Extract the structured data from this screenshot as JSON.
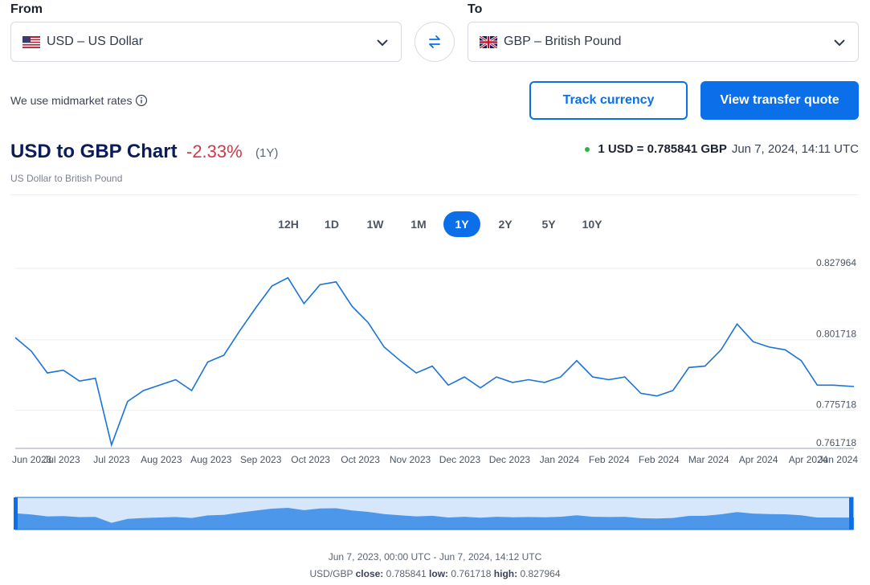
{
  "converter": {
    "from_label": "From",
    "to_label": "To",
    "from_value": "USD – US Dollar",
    "to_value": "GBP – British Pound",
    "from_flag": "us-flag",
    "to_flag": "uk-flag"
  },
  "midmarket_text": "We use midmarket rates",
  "buttons": {
    "track": "Track currency",
    "quote": "View transfer quote"
  },
  "chart_header": {
    "title": "USD to GBP Chart",
    "change": "-2.33%",
    "period": "(1Y)",
    "subtitle": "US Dollar to British Pound",
    "rate": "1 USD = 0.785841 GBP",
    "timestamp": "Jun 7, 2024, 14:11 UTC"
  },
  "ranges": [
    "12H",
    "1D",
    "1W",
    "1M",
    "1Y",
    "2Y",
    "5Y",
    "10Y"
  ],
  "active_range": "1Y",
  "footer": {
    "range_text": "Jun 7, 2023, 00:00 UTC - Jun 7, 2024, 14:12 UTC",
    "pair": "USD/GBP",
    "close_label": "close:",
    "close": "0.785841",
    "low_label": "low:",
    "low": "0.761718",
    "high_label": "high:",
    "high": "0.827964"
  },
  "colors": {
    "accent": "#0a6fe8",
    "negative": "#d0384b",
    "line": "#1a73d9",
    "navigator_fill": "#4c97ea",
    "navigator_bg": "#d6e7fb"
  },
  "chart_data": {
    "type": "line",
    "title": "USD to GBP Chart",
    "ylim": [
      0.761718,
      0.827964
    ],
    "y_ticks": [
      "0.827964",
      "0.801718",
      "0.775718",
      "0.761718"
    ],
    "x_tick_labels": [
      "Jun 2023",
      "Jul 2023",
      "Jul 2023",
      "Aug 2023",
      "Aug 2023",
      "Sep 2023",
      "Oct 2023",
      "Oct 2023",
      "Nov 2023",
      "Dec 2023",
      "Dec 2023",
      "Jan 2024",
      "Feb 2024",
      "Feb 2024",
      "Mar 2024",
      "Apr 2024",
      "Apr 2024",
      "Jun 2024"
    ],
    "x": [
      "2023-06-07",
      "2023-06-14",
      "2023-06-21",
      "2023-06-28",
      "2023-07-05",
      "2023-07-12",
      "2023-07-19",
      "2023-07-26",
      "2023-08-02",
      "2023-08-09",
      "2023-08-16",
      "2023-08-23",
      "2023-08-30",
      "2023-09-06",
      "2023-09-13",
      "2023-09-20",
      "2023-09-27",
      "2023-10-04",
      "2023-10-11",
      "2023-10-18",
      "2023-10-25",
      "2023-11-01",
      "2023-11-08",
      "2023-11-15",
      "2023-11-22",
      "2023-11-29",
      "2023-12-06",
      "2023-12-13",
      "2023-12-20",
      "2023-12-27",
      "2024-01-03",
      "2024-01-10",
      "2024-01-17",
      "2024-01-24",
      "2024-01-31",
      "2024-02-07",
      "2024-02-14",
      "2024-02-21",
      "2024-02-28",
      "2024-03-06",
      "2024-03-13",
      "2024-03-20",
      "2024-03-27",
      "2024-04-03",
      "2024-04-10",
      "2024-04-17",
      "2024-04-24",
      "2024-05-01",
      "2024-05-08",
      "2024-05-15",
      "2024-05-22",
      "2024-05-29",
      "2024-06-07"
    ],
    "series": [
      {
        "values": [
          0.8025,
          0.7975,
          0.7895,
          0.7905,
          0.7865,
          0.7875,
          0.763,
          0.779,
          0.783,
          0.785,
          0.787,
          0.783,
          0.7935,
          0.796,
          0.805,
          0.8135,
          0.8215,
          0.8245,
          0.815,
          0.822,
          0.823,
          0.814,
          0.808,
          0.799,
          0.794,
          0.7895,
          0.792,
          0.785,
          0.788,
          0.784,
          0.788,
          0.786,
          0.787,
          0.786,
          0.788,
          0.794,
          0.788,
          0.787,
          0.788,
          0.782,
          0.781,
          0.783,
          0.7915,
          0.792,
          0.798,
          0.8075,
          0.801,
          0.799,
          0.798,
          0.794,
          0.785,
          0.785,
          0.7845
        ]
      }
    ]
  }
}
